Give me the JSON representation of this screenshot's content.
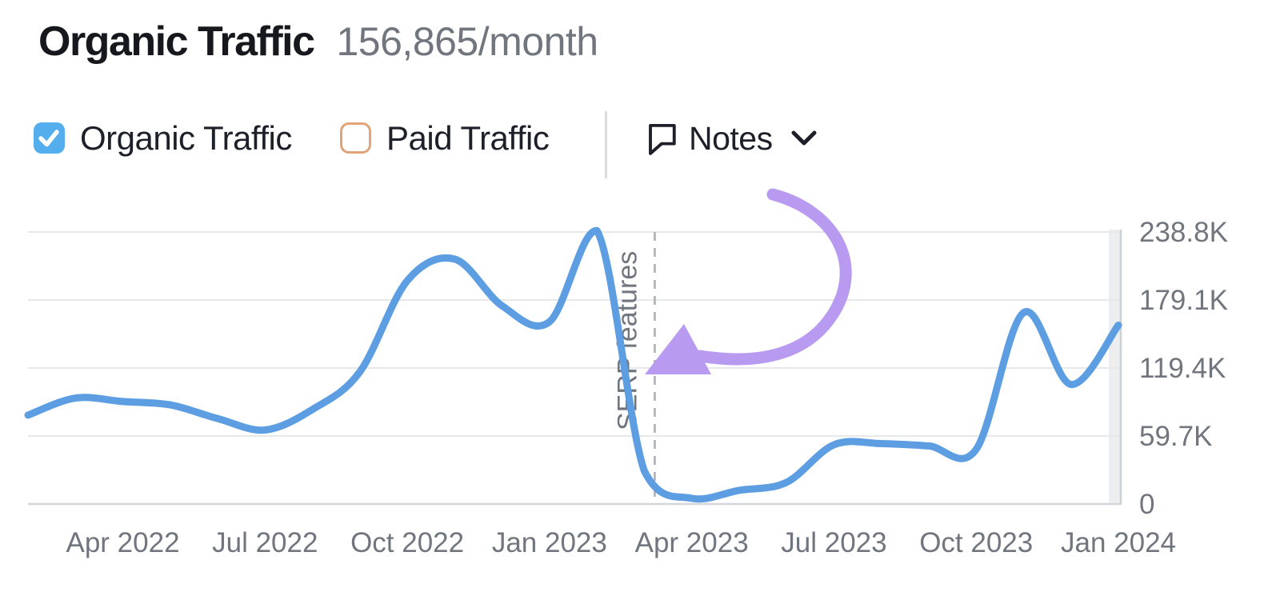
{
  "header": {
    "title": "Organic Traffic",
    "value": "156,865/month"
  },
  "controls": {
    "organic": {
      "label": "Organic Traffic",
      "checked": true
    },
    "paid": {
      "label": "Paid Traffic",
      "checked": false
    },
    "notes": {
      "label": "Notes"
    }
  },
  "chart_data": {
    "type": "line",
    "series_name": "Organic Traffic",
    "unit": "visits per month (thousands)",
    "x": [
      "Feb 2022",
      "Mar 2022",
      "Apr 2022",
      "May 2022",
      "Jun 2022",
      "Jul 2022",
      "Aug 2022",
      "Sep 2022",
      "Oct 2022",
      "Nov 2022",
      "Dec 2022",
      "Jan 2023",
      "Feb 2023",
      "Mar 2023",
      "Apr 2023",
      "May 2023",
      "Jun 2023",
      "Jul 2023",
      "Aug 2023",
      "Sep 2023",
      "Oct 2023",
      "Nov 2023",
      "Dec 2023",
      "Jan 2024"
    ],
    "values_k": [
      78,
      93,
      90,
      87,
      75,
      65,
      83,
      116,
      196,
      215,
      174,
      160,
      240,
      29,
      5,
      12,
      19,
      52,
      53,
      51,
      48,
      168,
      105,
      157
    ],
    "x_ticks": [
      {
        "label": "Apr 2022",
        "index": 2
      },
      {
        "label": "Jul 2022",
        "index": 5
      },
      {
        "label": "Oct 2022",
        "index": 8
      },
      {
        "label": "Jan 2023",
        "index": 11
      },
      {
        "label": "Apr 2023",
        "index": 14
      },
      {
        "label": "Jul 2023",
        "index": 17
      },
      {
        "label": "Oct 2023",
        "index": 20
      },
      {
        "label": "Jan 2024",
        "index": 23
      }
    ],
    "y_ticks": [
      {
        "label": "238.8K",
        "value_k": 238.8
      },
      {
        "label": "179.1K",
        "value_k": 179.1
      },
      {
        "label": "119.4K",
        "value_k": 119.4
      },
      {
        "label": "59.7K",
        "value_k": 59.7
      },
      {
        "label": "0",
        "value_k": 0
      }
    ],
    "ylim_k": [
      0,
      238.8
    ],
    "grid": "horizontal",
    "legend": "none",
    "annotation": {
      "label": "SERP features",
      "x_index": 13.22,
      "style": "dashed-vertical-line",
      "arrow": "curved purple arrow pointing at annotation line"
    },
    "current_period_band": true
  },
  "colors": {
    "line": "#5d9ee2",
    "arrow": "#b89bf0",
    "grid": "#e7e8ea",
    "axis_line": "#d3d6da",
    "band_fill": "#eceef0",
    "band_edge": "#ccd1d6",
    "dashed": "#a8adb4",
    "text_dark": "#1d2029",
    "text_gray": "#70757e",
    "checkbox_checked": "#54aeee",
    "checkbox_unchecked_border": "#e2a379"
  }
}
